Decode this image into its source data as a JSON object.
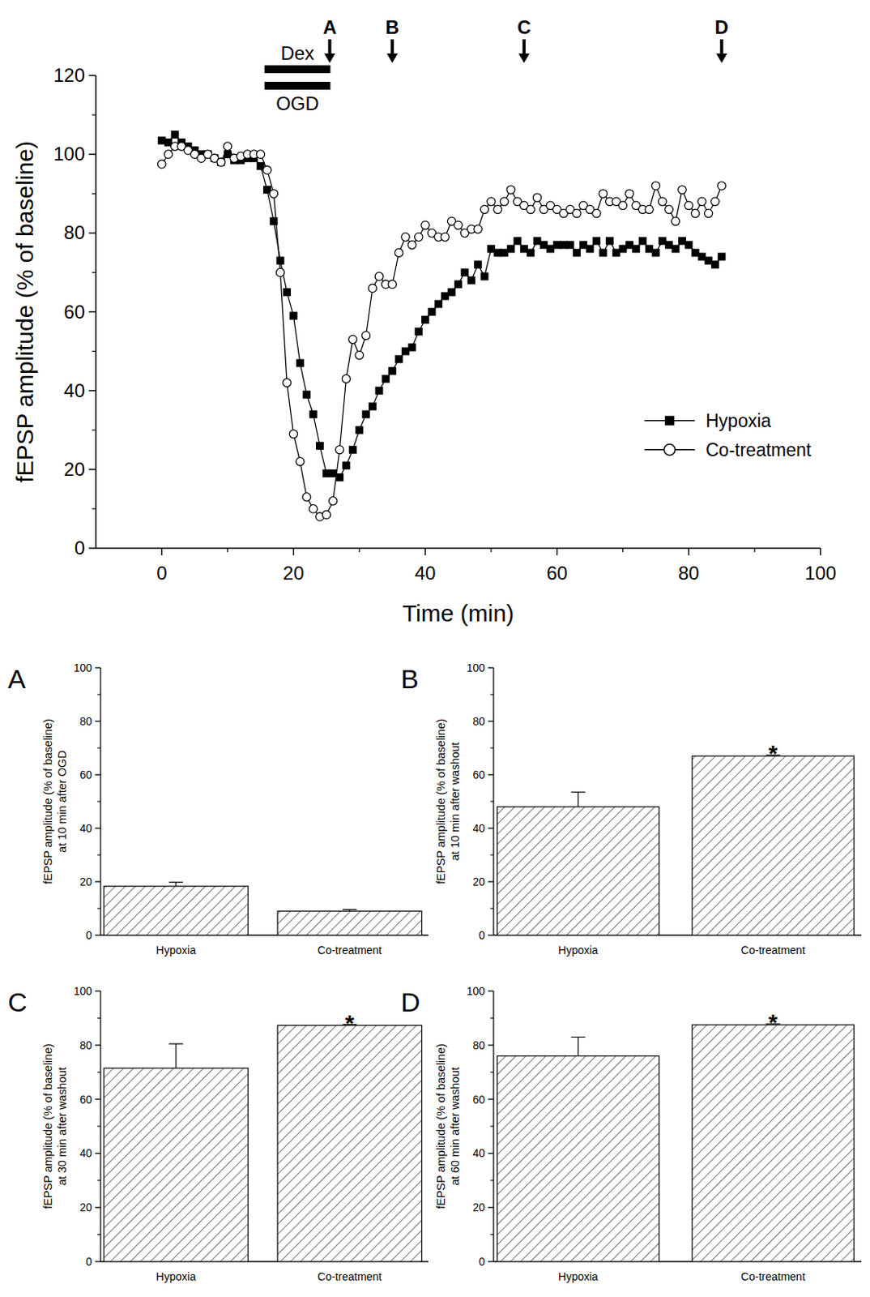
{
  "chart_data": [
    {
      "type": "line",
      "xlabel": "Time (min)",
      "ylabel": "fEPSP amplitude (% of baseline)",
      "xlim": [
        -10,
        100
      ],
      "xticks": [
        0,
        20,
        40,
        60,
        80,
        100
      ],
      "ylim": [
        0,
        120
      ],
      "yticks": [
        0,
        20,
        40,
        60,
        80,
        100,
        120
      ],
      "legend": "right",
      "x": [
        0,
        1,
        2,
        3,
        4,
        5,
        6,
        7,
        8,
        9,
        10,
        11,
        12,
        13,
        14,
        15,
        16,
        17,
        18,
        19,
        20,
        21,
        22,
        23,
        24,
        25,
        26,
        27,
        28,
        29,
        30,
        31,
        32,
        33,
        34,
        35,
        36,
        37,
        38,
        39,
        40,
        41,
        42,
        43,
        44,
        45,
        46,
        47,
        48,
        49,
        50,
        51,
        52,
        53,
        54,
        55,
        56,
        57,
        58,
        59,
        60,
        61,
        62,
        63,
        64,
        65,
        66,
        67,
        68,
        69,
        70,
        71,
        72,
        73,
        74,
        75,
        76,
        77,
        78,
        79,
        80,
        81,
        82,
        83,
        84,
        85
      ],
      "series": [
        {
          "name": "Hypoxia",
          "color": "#000000",
          "marker": "square",
          "values": [
            103.5,
            103,
            105,
            103,
            102,
            101,
            100,
            100,
            99,
            98,
            100,
            98.5,
            98.5,
            99,
            99,
            97,
            91,
            83,
            73,
            65,
            59,
            47,
            39,
            34,
            26,
            19,
            19,
            18,
            21,
            25,
            30,
            34,
            36,
            40,
            43,
            45,
            48,
            50,
            51,
            55,
            58,
            60,
            62,
            64,
            65,
            67,
            70,
            68,
            72,
            69,
            76,
            75,
            75,
            76,
            78,
            76,
            75,
            78,
            77,
            76,
            77,
            77,
            77,
            75,
            77,
            76,
            78,
            75,
            78,
            75,
            76,
            77,
            76,
            78,
            76,
            75,
            78,
            77,
            76,
            78,
            77,
            75,
            74,
            73,
            72,
            74
          ]
        },
        {
          "name": "Co-treatment",
          "color": "#000000",
          "marker": "circle-open",
          "values": [
            97.5,
            100,
            102,
            102,
            101,
            100,
            99,
            100,
            99,
            98,
            102,
            99,
            99.5,
            100,
            100,
            100,
            96,
            90,
            70,
            42,
            29,
            22,
            13,
            10,
            8,
            8.5,
            12,
            25,
            43,
            53,
            49,
            54,
            66,
            69,
            67,
            67,
            75,
            79,
            77,
            79,
            82,
            80,
            79,
            79,
            83,
            82,
            80,
            81,
            81,
            86,
            88,
            86,
            88,
            91,
            88,
            87,
            86,
            89,
            86,
            87,
            86,
            85,
            86,
            85,
            87,
            86,
            85,
            90,
            88,
            88,
            87,
            90,
            87,
            86,
            86,
            92,
            88,
            86,
            83,
            91,
            87,
            85,
            88,
            85,
            88,
            92
          ]
        }
      ],
      "periods": [
        {
          "label": "Dex",
          "start": 15.6,
          "end": 25.6
        },
        {
          "label": "OGD",
          "start": 15.6,
          "end": 25.6
        }
      ],
      "arrows": [
        {
          "label": "A",
          "x": 25.5
        },
        {
          "label": "B",
          "x": 35
        },
        {
          "label": "C",
          "x": 55
        },
        {
          "label": "D",
          "x": 85
        }
      ]
    },
    {
      "type": "bar",
      "panel": "A",
      "ylabel": [
        "fEPSP amplitude (% of baseline)",
        "at 10 min after OGD"
      ],
      "categories": [
        "Hypoxia",
        "Co-treatment"
      ],
      "values": [
        18.3,
        9
      ],
      "errors": [
        1.5,
        0.6
      ],
      "ylim": [
        0,
        100
      ],
      "yticks": [
        0,
        20,
        40,
        60,
        80,
        100
      ],
      "annotations": []
    },
    {
      "type": "bar",
      "panel": "B",
      "ylabel": [
        "fEPSP amplitude (% of baseline)",
        "at 10 min after washout"
      ],
      "categories": [
        "Hypoxia",
        "Co-treatment"
      ],
      "values": [
        48,
        67
      ],
      "errors": [
        5.5,
        0.3
      ],
      "ylim": [
        0,
        100
      ],
      "yticks": [
        0,
        20,
        40,
        60,
        80,
        100
      ],
      "annotations": [
        {
          "text": "*",
          "index": 1
        }
      ]
    },
    {
      "type": "bar",
      "panel": "C",
      "ylabel": [
        "fEPSP amplitude (% of baseline)",
        "at 30 min after washout"
      ],
      "categories": [
        "Hypoxia",
        "Co-treatment"
      ],
      "values": [
        71.5,
        87.3
      ],
      "errors": [
        9,
        0.3
      ],
      "ylim": [
        0,
        100
      ],
      "yticks": [
        0,
        20,
        40,
        60,
        80,
        100
      ],
      "annotations": [
        {
          "text": "*",
          "index": 1
        }
      ]
    },
    {
      "type": "bar",
      "panel": "D",
      "ylabel": [
        "fEPSP amplitude (% of baseline)",
        "at 60 min after washout"
      ],
      "categories": [
        "Hypoxia",
        "Co-treatment"
      ],
      "values": [
        76,
        87.5
      ],
      "errors": [
        7,
        0.3
      ],
      "ylim": [
        0,
        100
      ],
      "yticks": [
        0,
        20,
        40,
        60,
        80,
        100
      ],
      "annotations": [
        {
          "text": "*",
          "index": 1
        }
      ]
    }
  ]
}
